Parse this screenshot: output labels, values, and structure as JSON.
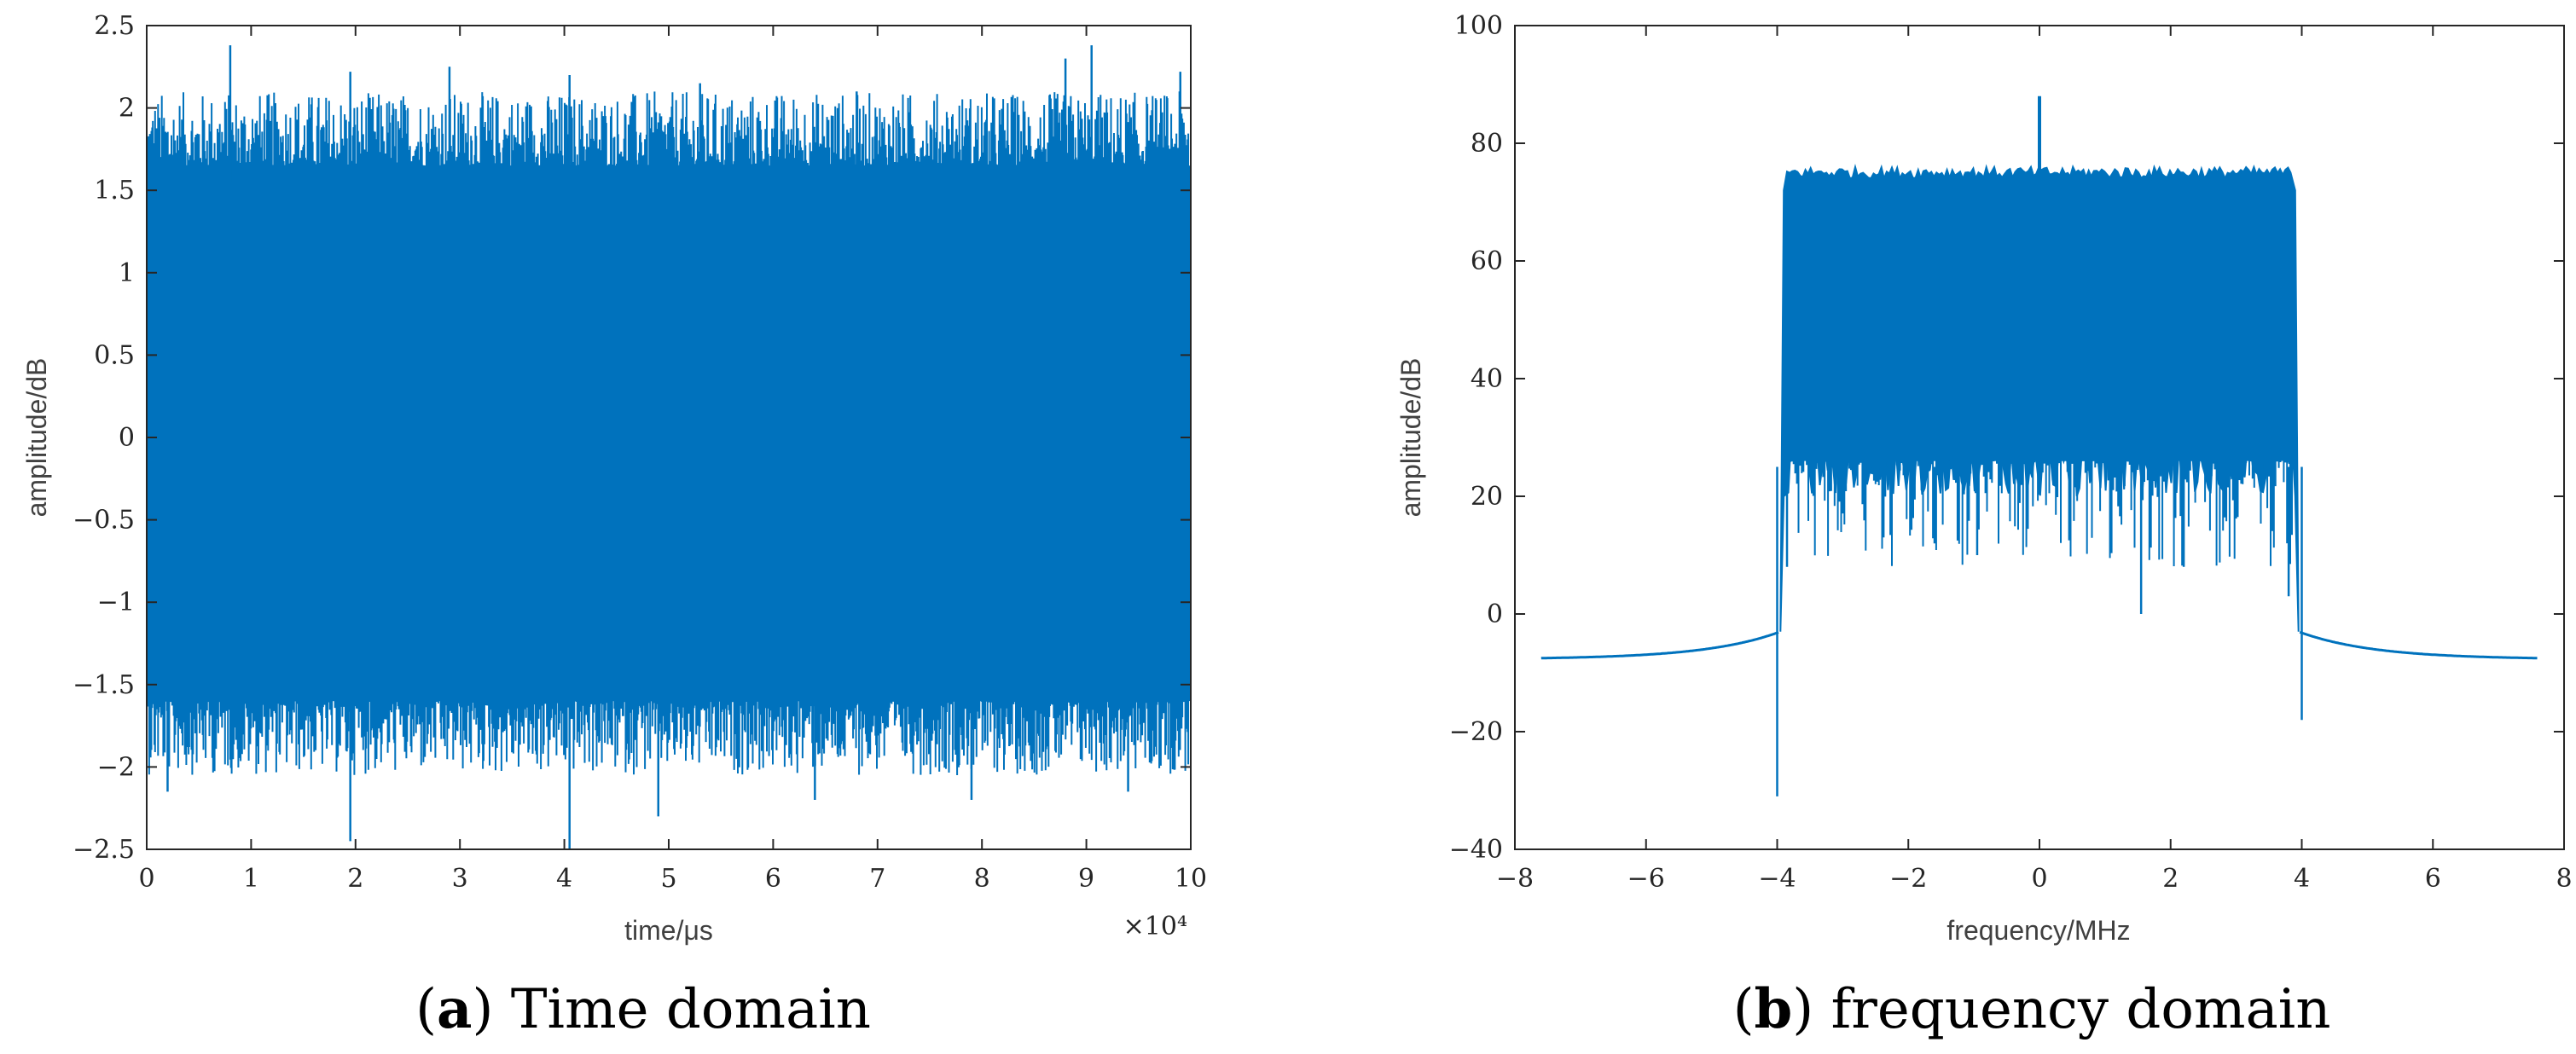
{
  "figure": {
    "series_color": "#0072BD",
    "captions": [
      {
        "letter": "a",
        "text": "Time domain"
      },
      {
        "letter": "b",
        "text": "frequency domain"
      }
    ]
  },
  "chart_data": [
    {
      "type": "line",
      "title": "",
      "xlabel": "time/μs",
      "ylabel": "amplitude/dB",
      "xlim": [
        0,
        100000
      ],
      "ylim": [
        -2.5,
        2.5
      ],
      "x_ticks": [
        0,
        1,
        2,
        3,
        4,
        5,
        6,
        7,
        8,
        9,
        10
      ],
      "x_tick_labels": [
        "0",
        "1",
        "2",
        "3",
        "4",
        "5",
        "6",
        "7",
        "8",
        "9",
        "10"
      ],
      "x_exponent_label": "×10⁴",
      "y_ticks": [
        -2.5,
        -2,
        -1.5,
        -1,
        -0.5,
        0,
        0.5,
        1,
        1.5,
        2,
        2.5
      ],
      "y_tick_labels": [
        "−2.5",
        "−2",
        "−1.5",
        "−1",
        "−0.5",
        "0",
        "0.5",
        "1",
        "1.5",
        "2",
        "2.5"
      ],
      "series": [
        {
          "name": "time-domain signal",
          "description": "dense noise-like signal filling roughly ±1.6 with spikes",
          "band": [
            -1.6,
            1.65
          ],
          "peaks": [
            [
              0.8,
              2.38
            ],
            [
              1.95,
              2.22
            ],
            [
              2.9,
              2.25
            ],
            [
              4.05,
              2.2
            ],
            [
              5.3,
              2.15
            ],
            [
              6.8,
              2.1
            ],
            [
              8.8,
              2.3
            ],
            [
              9.05,
              2.38
            ],
            [
              9.9,
              2.22
            ]
          ],
          "troughs": [
            [
              0.2,
              -2.15
            ],
            [
              1.95,
              -2.45
            ],
            [
              4.05,
              -2.5
            ],
            [
              4.9,
              -2.3
            ],
            [
              6.4,
              -2.2
            ],
            [
              7.9,
              -2.2
            ],
            [
              9.4,
              -2.15
            ]
          ]
        }
      ]
    },
    {
      "type": "line",
      "title": "",
      "xlabel": "frequency/MHz",
      "ylabel": "amplitude/dB",
      "xlim": [
        -8,
        8
      ],
      "ylim": [
        -40,
        100
      ],
      "x_ticks": [
        -8,
        -6,
        -4,
        -2,
        0,
        2,
        4,
        6,
        8
      ],
      "x_tick_labels": [
        "−8",
        "−6",
        "−4",
        "−2",
        "0",
        "2",
        "4",
        "6",
        "8"
      ],
      "y_ticks": [
        -40,
        -20,
        0,
        20,
        40,
        60,
        80,
        100
      ],
      "y_tick_labels": [
        "−40",
        "−20",
        "0",
        "20",
        "40",
        "60",
        "80",
        "100"
      ],
      "series": [
        {
          "name": "spectrum",
          "x_range": [
            -7.6,
            7.6
          ],
          "passband": [
            -3.95,
            3.95
          ],
          "passband_top": 75,
          "passband_floor": 30,
          "out_of_band_edge_level": -7.5,
          "band_edge_level": -3,
          "center_spike": [
            0,
            88
          ],
          "dips": [
            [
              -4.0,
              -31
            ],
            [
              4.0,
              -18
            ],
            [
              -3.85,
              8
            ],
            [
              3.8,
              3
            ],
            [
              -0.95,
              10
            ],
            [
              1.55,
              0
            ],
            [
              -1.6,
              12
            ],
            [
              2.2,
              8
            ]
          ]
        }
      ]
    }
  ]
}
